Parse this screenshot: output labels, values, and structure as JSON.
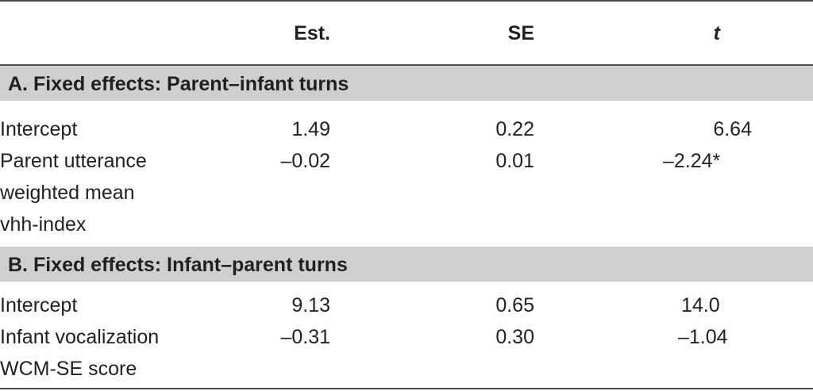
{
  "header": {
    "col1": "Est.",
    "col2": "SE",
    "col3": "t"
  },
  "sections": [
    {
      "title": "A. Fixed effects: Parent–infant turns",
      "rows": [
        {
          "label": [
            "Intercept"
          ],
          "est": "1.49",
          "se": "0.22",
          "t": "6.64"
        },
        {
          "label": [
            "Parent utterance",
            "weighted mean",
            "vhh-index"
          ],
          "est": "–0.02",
          "se": "0.01",
          "t": "–2.24*"
        }
      ]
    },
    {
      "title": "B. Fixed effects: Infant–parent turns",
      "rows": [
        {
          "label": [
            "Intercept"
          ],
          "est": "9.13",
          "se": "0.65",
          "t": "14.0"
        },
        {
          "label": [
            "Infant vocalization",
            "WCM-SE score"
          ],
          "est": "–0.31",
          "se": "0.30",
          "t": "–1.04"
        }
      ]
    }
  ]
}
